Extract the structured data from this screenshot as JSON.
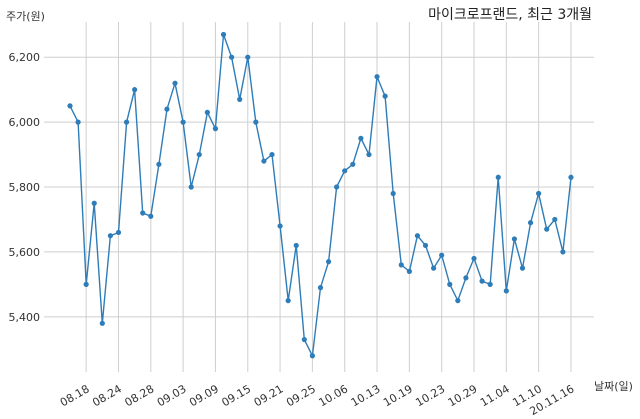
{
  "chart_data": {
    "type": "line",
    "title": "마이크로프랜드, 최근 3개월",
    "ylabel": "주가(원)",
    "xlabel": "날짜(일)",
    "ylim": [
      5230,
      6290
    ],
    "yticks": [
      5400,
      5600,
      5800,
      6000,
      6200
    ],
    "ytick_labels": [
      "5,400",
      "5,600",
      "5,800",
      "6,000",
      "6,200"
    ],
    "grid": true,
    "color": "#2e7cb8",
    "x_tick_labels": [
      "08.18",
      "08.24",
      "08.28",
      "09.03",
      "09.09",
      "09.15",
      "09.21",
      "09.25",
      "10.06",
      "10.13",
      "10.19",
      "10.23",
      "10.29",
      "11.04",
      "11.10",
      "20.11.16"
    ],
    "x_tick_index": [
      2,
      6,
      10,
      14,
      18,
      22,
      26,
      30,
      34,
      38,
      42,
      46,
      50,
      54,
      58,
      62
    ],
    "values": [
      6050,
      6000,
      5500,
      5750,
      5380,
      5650,
      5660,
      6000,
      6100,
      5720,
      5710,
      5870,
      6040,
      6120,
      6000,
      5800,
      5900,
      6030,
      5980,
      6270,
      6200,
      6070,
      6200,
      6000,
      5880,
      5900,
      5680,
      5450,
      5620,
      5330,
      5280,
      5490,
      5570,
      5800,
      5850,
      5870,
      5950,
      5900,
      6140,
      6080,
      5780,
      5560,
      5540,
      5650,
      5620,
      5550,
      5590,
      5500,
      5450,
      5520,
      5580,
      5510,
      5500,
      5830,
      5480,
      5640,
      5550,
      5690,
      5780,
      5670,
      5700,
      5600,
      5830
    ]
  }
}
